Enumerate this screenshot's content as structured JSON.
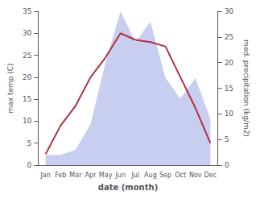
{
  "chart_data": {
    "type": "line",
    "xlabel": "date (month)",
    "ylabel": "max temp (C)",
    "y2label": "med. precipitation (kg/m2)",
    "categories": [
      "Jan",
      "Feb",
      "Mar",
      "Apr",
      "May",
      "Jun",
      "Jul",
      "Aug",
      "Sep",
      "Oct",
      "Nov",
      "Dec"
    ],
    "series": [
      {
        "type": "area",
        "axis": "y2",
        "color": "#c8cef0",
        "values": [
          2,
          2,
          3,
          8,
          20,
          30,
          24,
          28,
          17,
          13,
          17,
          9
        ]
      },
      {
        "type": "line",
        "color": "#b03040",
        "values": [
          2.5,
          9,
          13.5,
          20,
          24.5,
          30,
          28.5,
          28,
          27,
          20,
          13,
          5
        ]
      }
    ],
    "ylim": [
      0,
      35
    ],
    "yticks": [
      0,
      5,
      10,
      15,
      20,
      25,
      30,
      35
    ],
    "y2lim": [
      0,
      30
    ],
    "y2ticks": [
      0,
      5,
      10,
      15,
      20,
      25,
      30
    ],
    "grid": false
  }
}
